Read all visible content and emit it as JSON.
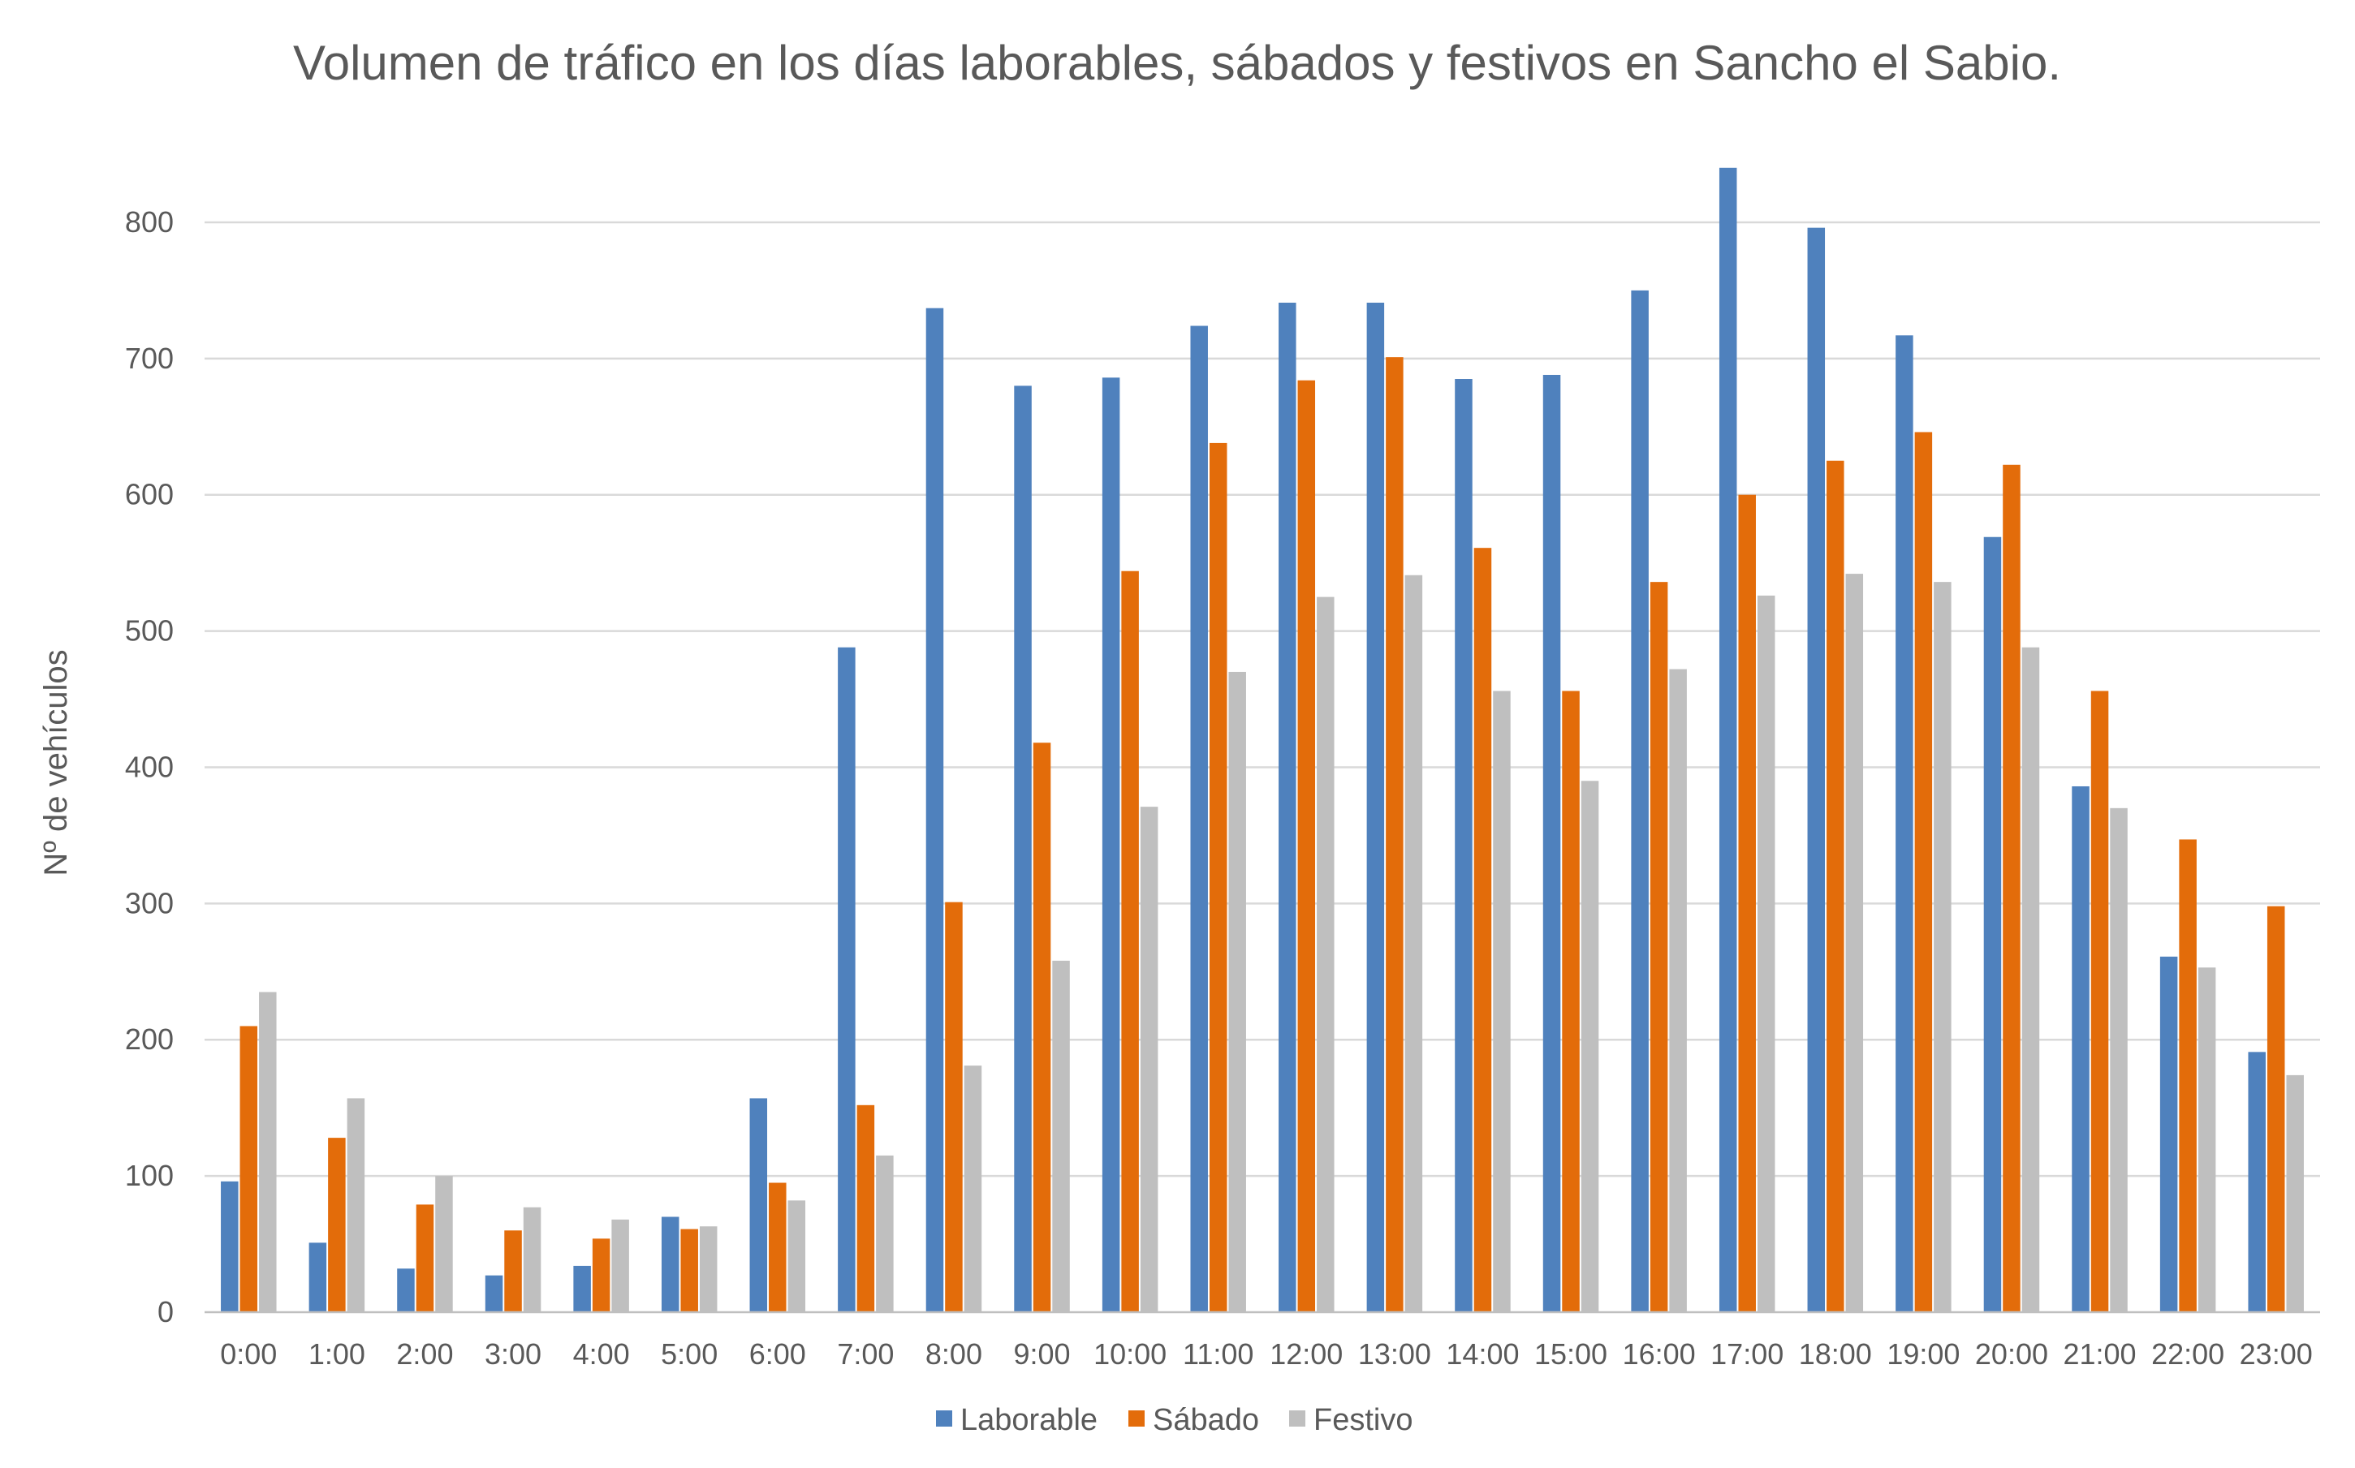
{
  "chart_data": {
    "type": "bar",
    "title": "Volumen de tráfico en los días laborables, sábados y festivos en Sancho el Sabio.",
    "xlabel": "",
    "ylabel": "Nº de vehículos",
    "ylim": [
      0,
      850
    ],
    "yticks": [
      "0",
      "100",
      "200",
      "300",
      "400",
      "500",
      "600",
      "700",
      "800"
    ],
    "grid": true,
    "legend_position": "bottom",
    "categories": [
      "0:00",
      "1:00",
      "2:00",
      "3:00",
      "4:00",
      "5:00",
      "6:00",
      "7:00",
      "8:00",
      "9:00",
      "10:00",
      "11:00",
      "12:00",
      "13:00",
      "14:00",
      "15:00",
      "16:00",
      "17:00",
      "18:00",
      "19:00",
      "20:00",
      "21:00",
      "22:00",
      "23:00"
    ],
    "series": [
      {
        "name": "Laborable",
        "color": "#4f81bd",
        "values": [
          96,
          51,
          32,
          27,
          34,
          70,
          157,
          488,
          737,
          680,
          686,
          724,
          741,
          741,
          685,
          688,
          750,
          840,
          796,
          717,
          569,
          386,
          261,
          191
        ]
      },
      {
        "name": "Sábado",
        "color": "#e36c0a",
        "values": [
          210,
          128,
          79,
          60,
          54,
          61,
          95,
          152,
          301,
          418,
          544,
          638,
          684,
          701,
          561,
          456,
          536,
          600,
          625,
          646,
          622,
          456,
          347,
          298
        ]
      },
      {
        "name": "Festivo",
        "color": "#bfbfbf",
        "values": [
          235,
          157,
          100,
          77,
          68,
          63,
          82,
          115,
          181,
          258,
          371,
          470,
          525,
          541,
          456,
          390,
          472,
          526,
          542,
          536,
          488,
          370,
          253,
          174
        ]
      }
    ]
  },
  "colors": {
    "gridline": "#d9d9d9",
    "axis_line": "#bfbfbf",
    "text": "#595959"
  }
}
